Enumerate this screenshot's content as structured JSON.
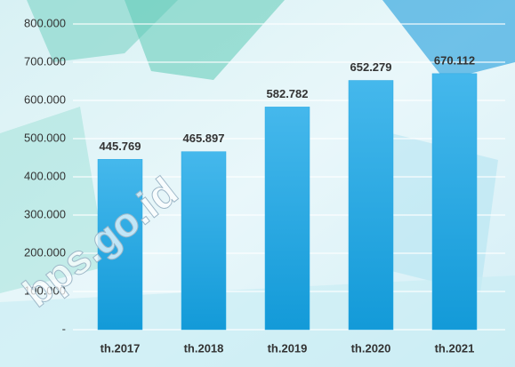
{
  "chart_data": {
    "type": "bar",
    "categories": [
      "th.2017",
      "th.2018",
      "th.2019",
      "th.2020",
      "th.2021"
    ],
    "values": [
      445769,
      465897,
      582782,
      652279,
      670112
    ],
    "value_labels": [
      "445.769",
      "465.897",
      "582.782",
      "652.279",
      "670.112"
    ],
    "color": "#29a9e4",
    "ylim": [
      0,
      800000
    ],
    "yticks": [
      {
        "value": 0,
        "label": "-"
      },
      {
        "value": 100000,
        "label": "100.000"
      },
      {
        "value": 200000,
        "label": "200.000"
      },
      {
        "value": 300000,
        "label": "300.000"
      },
      {
        "value": 400000,
        "label": "400.000"
      },
      {
        "value": 500000,
        "label": "500.000"
      },
      {
        "value": 600000,
        "label": "600.000"
      },
      {
        "value": 700000,
        "label": "700.000"
      },
      {
        "value": 800000,
        "label": "800.000"
      }
    ],
    "grid": true,
    "watermark": "bps.go.id"
  }
}
